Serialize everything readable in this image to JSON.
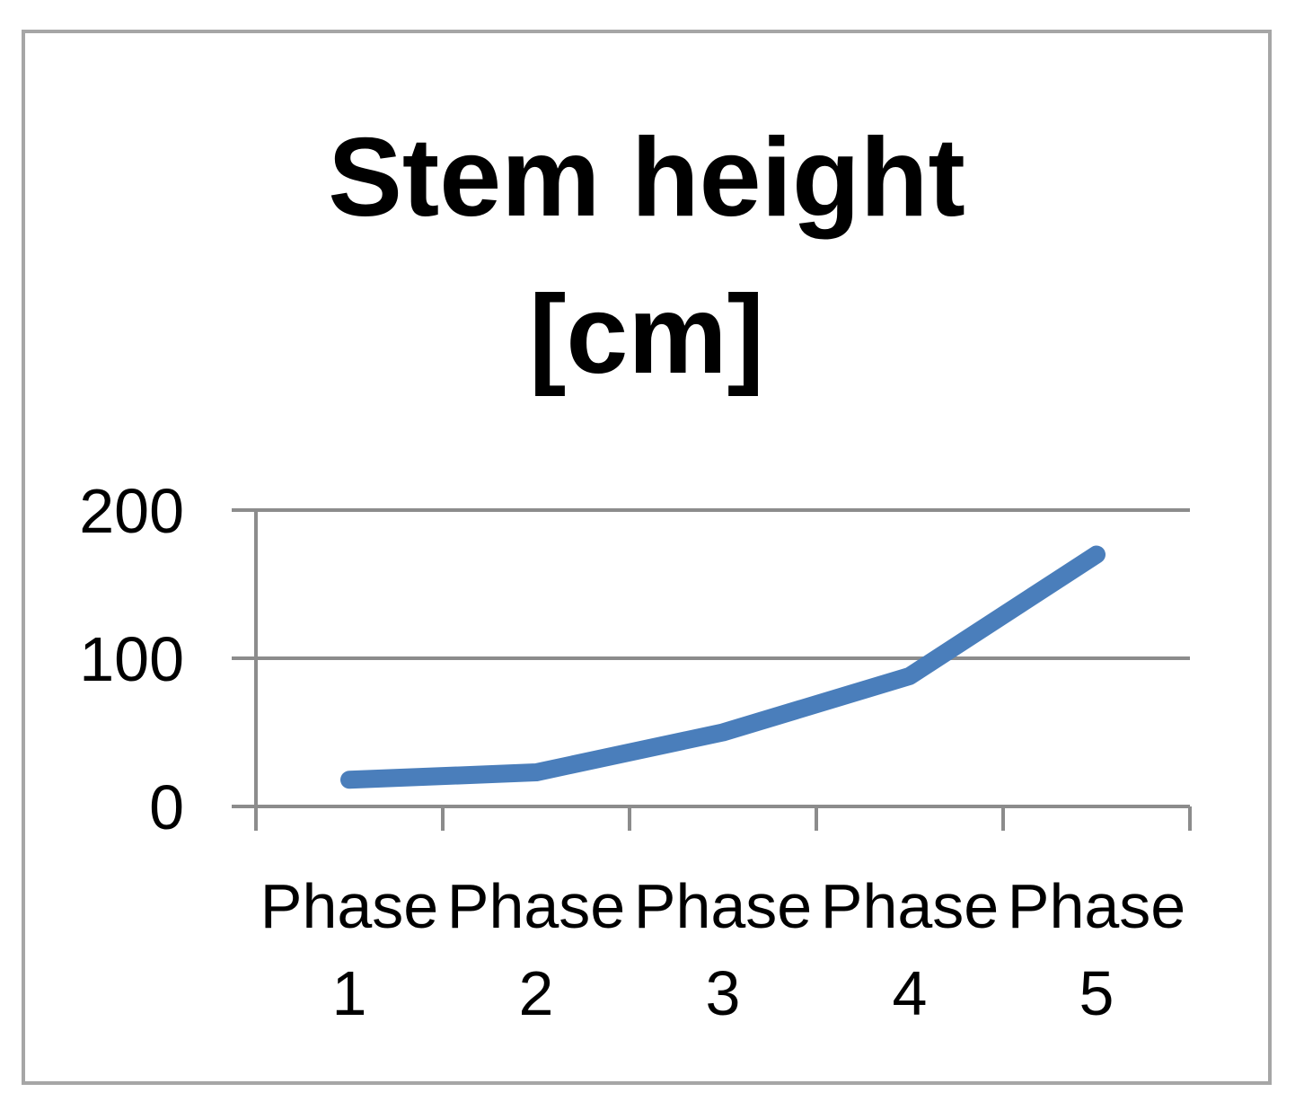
{
  "chart_data": {
    "type": "line",
    "title_lines": [
      "Stem height",
      "[cm]"
    ],
    "categories": [
      "Phase 1",
      "Phase 2",
      "Phase 3",
      "Phase 4",
      "Phase 5"
    ],
    "category_lines": [
      [
        "Phase",
        "1"
      ],
      [
        "Phase",
        "2"
      ],
      [
        "Phase",
        "3"
      ],
      [
        "Phase",
        "4"
      ],
      [
        "Phase",
        "5"
      ]
    ],
    "series": [
      {
        "values": [
          18,
          23,
          50,
          88,
          170
        ],
        "color": "#4a7ebb"
      }
    ],
    "ylim": [
      0,
      200
    ],
    "yticks": [
      0,
      100,
      200
    ],
    "grid": true,
    "legend": "none",
    "colors": {
      "frame": "#a6a6a6",
      "axis": "#8c8c8c",
      "grid": "#8c8c8c",
      "text": "#000000"
    }
  }
}
